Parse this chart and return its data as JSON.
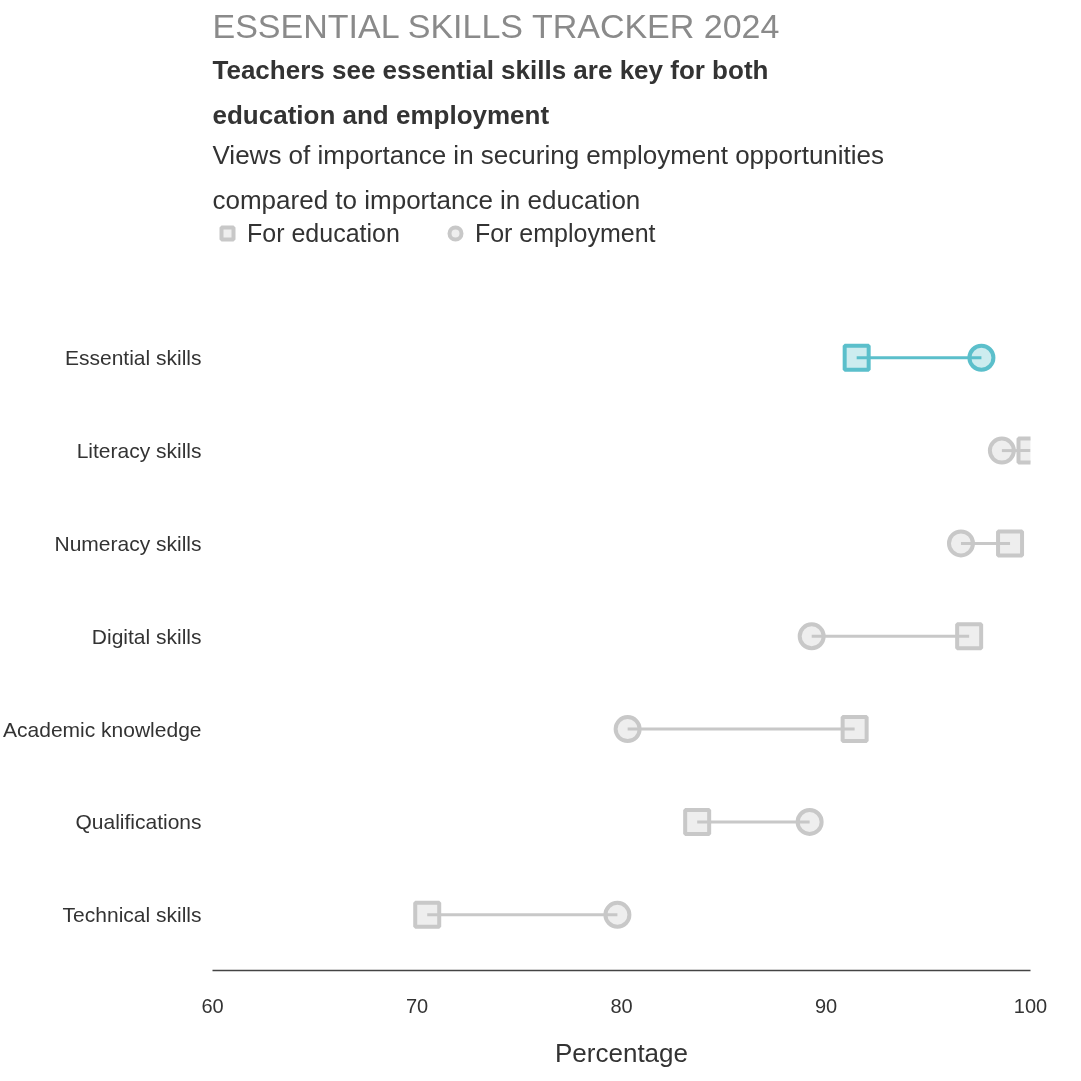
{
  "chart_data": {
    "type": "scatter",
    "orientation": "horizontal",
    "title": "Teachers see essential skills are key for both education and employment",
    "subtitle": "Views of importance in securing employment opportunities compared to importance in education",
    "annotations": [
      "ESSENTIAL SKILLS TRACKER 2024"
    ],
    "xlabel": "Percentage",
    "categories": [
      "Essential skills",
      "Literacy skills",
      "Numeracy skills",
      "Digital skills",
      "Academic knowledge",
      "Qualifications",
      "Technical skills"
    ],
    "series": [
      {
        "name": "For education",
        "marker": "square",
        "color": "#c8c8c8",
        "colors": [
          "#5bbfcb",
          "#c8c8c8",
          "#c8c8c8",
          "#c8c8c8",
          "#c8c8c8",
          "#c8c8c8",
          "#c8c8c8"
        ],
        "values": [
          91.5,
          100,
          99,
          97,
          91.4,
          83.7,
          70.5
        ]
      },
      {
        "name": "For employment",
        "marker": "circle",
        "color": "#c8c8c8",
        "colors": [
          "#5bbfcb",
          "#c8c8c8",
          "#c8c8c8",
          "#c8c8c8",
          "#c8c8c8",
          "#c8c8c8",
          "#c8c8c8"
        ],
        "values": [
          97.6,
          98.6,
          96.6,
          89.3,
          80.3,
          89.2,
          79.8
        ]
      }
    ],
    "xlim": [
      60,
      100
    ],
    "xticks": [
      60,
      70,
      80,
      90,
      100
    ],
    "grid": false,
    "legend": "top left"
  }
}
